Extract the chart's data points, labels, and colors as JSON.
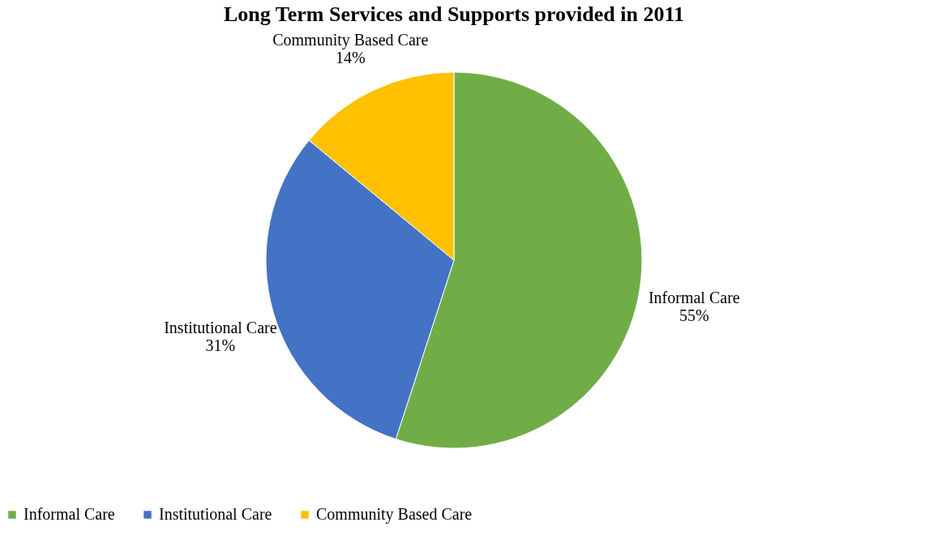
{
  "chart_data": {
    "type": "pie",
    "title": "Long Term Services and Supports provided in 2011",
    "categories": [
      "Informal Care",
      "Institutional Care",
      "Community Based Care"
    ],
    "values": [
      55,
      31,
      14
    ],
    "colors": [
      "#70ad47",
      "#4472c4",
      "#ffc000"
    ],
    "value_labels": [
      "55%",
      "31%",
      "14%"
    ],
    "legend": "bottom"
  }
}
